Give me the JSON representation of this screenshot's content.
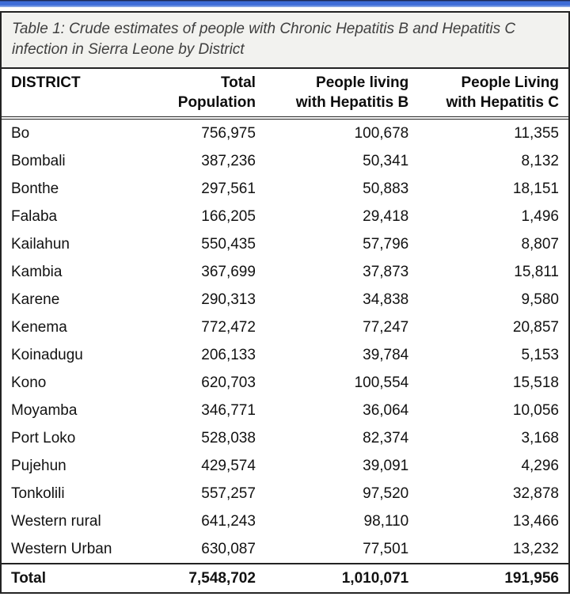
{
  "chart_data": {
    "type": "table",
    "title": "Table 1: Crude estimates of people with Chronic Hepatitis B and Hepatitis C infection in Sierra Leone by District",
    "columns": [
      "DISTRICT",
      "Total Population",
      "People living with Hepatitis B",
      "People Living with Hepatitis C"
    ],
    "rows": [
      [
        "Bo",
        756975,
        100678,
        11355
      ],
      [
        "Bombali",
        387236,
        50341,
        8132
      ],
      [
        "Bonthe",
        297561,
        50883,
        18151
      ],
      [
        "Falaba",
        166205,
        29418,
        1496
      ],
      [
        "Kailahun",
        550435,
        57796,
        8807
      ],
      [
        "Kambia",
        367699,
        37873,
        15811
      ],
      [
        "Karene",
        290313,
        34838,
        9580
      ],
      [
        "Kenema",
        772472,
        77247,
        20857
      ],
      [
        "Koinadugu",
        206133,
        39784,
        5153
      ],
      [
        "Kono",
        620703,
        100554,
        15518
      ],
      [
        "Moyamba",
        346771,
        36064,
        10056
      ],
      [
        "Port Loko",
        528038,
        82374,
        3168
      ],
      [
        "Pujehun",
        429574,
        39091,
        4296
      ],
      [
        "Tonkolili",
        557257,
        97520,
        32878
      ],
      [
        "Western rural",
        641243,
        98110,
        13466
      ],
      [
        "Western Urban",
        630087,
        77501,
        13232
      ]
    ],
    "totals": [
      "Total",
      7548702,
      1010071,
      191956
    ]
  },
  "table": {
    "caption": "Table 1: Crude estimates of people with Chronic Hepatitis B and Hepatitis C infection in Sierra Leone by District",
    "columns": [
      [
        "DISTRICT",
        ""
      ],
      [
        "Total",
        "Population"
      ],
      [
        "People living",
        "with Hepatitis B"
      ],
      [
        "People Living",
        "with Hepatitis C"
      ]
    ],
    "rows": [
      [
        "Bo",
        "756,975",
        "100,678",
        "11,355"
      ],
      [
        "Bombali",
        "387,236",
        "50,341",
        "8,132"
      ],
      [
        "Bonthe",
        "297,561",
        "50,883",
        "18,151"
      ],
      [
        "Falaba",
        "166,205",
        "29,418",
        "1,496"
      ],
      [
        "Kailahun",
        "550,435",
        "57,796",
        "8,807"
      ],
      [
        "Kambia",
        "367,699",
        "37,873",
        "15,811"
      ],
      [
        "Karene",
        "290,313",
        "34,838",
        "9,580"
      ],
      [
        "Kenema",
        "772,472",
        "77,247",
        "20,857"
      ],
      [
        "Koinadugu",
        "206,133",
        "39,784",
        "5,153"
      ],
      [
        "Kono",
        "620,703",
        "100,554",
        "15,518"
      ],
      [
        "Moyamba",
        "346,771",
        "36,064",
        "10,056"
      ],
      [
        "Port Loko",
        "528,038",
        "82,374",
        "3,168"
      ],
      [
        "Pujehun",
        "429,574",
        "39,091",
        "4,296"
      ],
      [
        "Tonkolili",
        "557,257",
        "97,520",
        "32,878"
      ],
      [
        "Western rural",
        "641,243",
        "98,110",
        "13,466"
      ],
      [
        "Western Urban",
        "630,087",
        "77,501",
        "13,232"
      ]
    ],
    "total_row": [
      "Total",
      "7,548,702",
      "1,010,071",
      "191,956"
    ]
  },
  "colors": {
    "top_bar_blue": "#3d6cd7",
    "top_bar_navy": "#1c2a55",
    "border_dark": "#232323",
    "caption_bg": "#f2f2ef",
    "text": "#121212"
  }
}
